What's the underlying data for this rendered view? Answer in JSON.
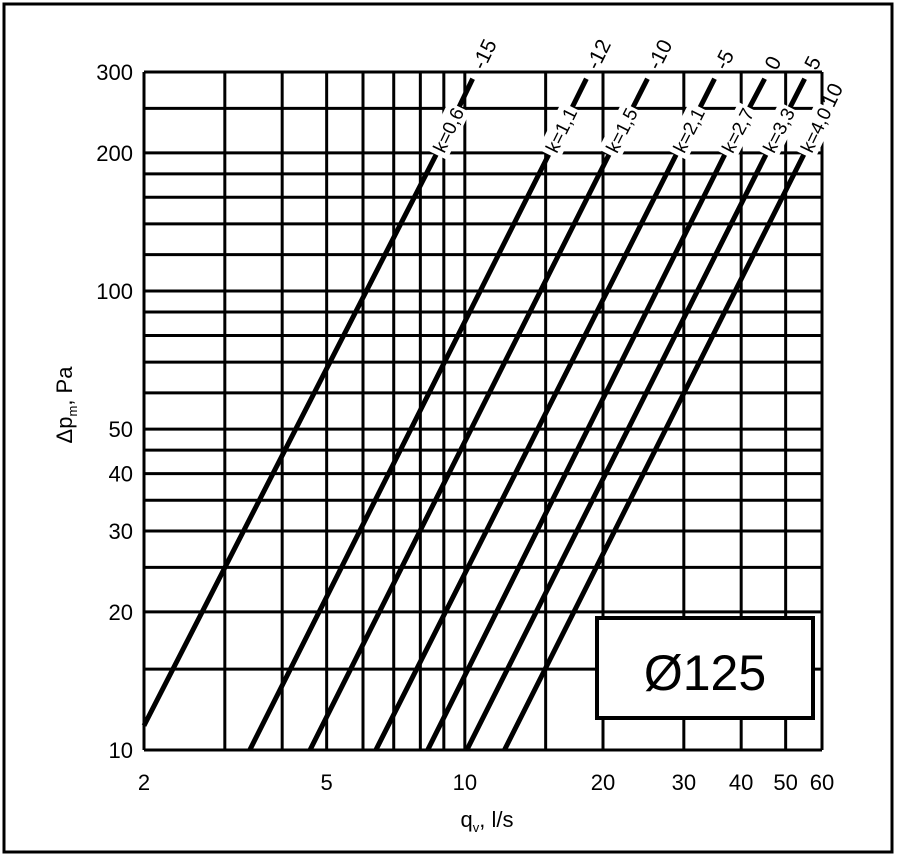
{
  "chart_data": {
    "type": "line",
    "x_scale": "log",
    "y_scale": "log",
    "xlim": [
      2,
      60
    ],
    "ylim": [
      10,
      300
    ],
    "xlabel": "q",
    "xlabel_sub": "v",
    "xlabel_unit": ", l/s",
    "ylabel": "Δp",
    "ylabel_sub": "m",
    "ylabel_unit": ", Pa",
    "x_tick_labels": [
      {
        "value": 2,
        "label": "2"
      },
      {
        "value": 5,
        "label": "5"
      },
      {
        "value": 10,
        "label": "10"
      },
      {
        "value": 20,
        "label": "20"
      },
      {
        "value": 30,
        "label": "30"
      },
      {
        "value": 40,
        "label": "40"
      },
      {
        "value": 50,
        "label": "50"
      },
      {
        "value": 60,
        "label": "60"
      }
    ],
    "y_tick_labels": [
      {
        "value": 10,
        "label": "10"
      },
      {
        "value": 20,
        "label": "20"
      },
      {
        "value": 30,
        "label": "30"
      },
      {
        "value": 40,
        "label": "40"
      },
      {
        "value": 50,
        "label": "50"
      },
      {
        "value": 100,
        "label": "100"
      },
      {
        "value": 200,
        "label": "200"
      },
      {
        "value": 300,
        "label": "300"
      }
    ],
    "x_gridlines": [
      2,
      3,
      4,
      5,
      6,
      7,
      8,
      9,
      10,
      15,
      20,
      30,
      40,
      50,
      60
    ],
    "y_gridlines": [
      10,
      15,
      20,
      25,
      30,
      35,
      40,
      45,
      50,
      60,
      70,
      80,
      90,
      100,
      120,
      140,
      160,
      180,
      200,
      250,
      300
    ],
    "grid": true,
    "series": [
      {
        "k_label": "k=0,6",
        "end_label": "-15",
        "points": [
          [
            2,
            11.3
          ],
          [
            8.7,
            200
          ],
          [
            10.4,
            290
          ]
        ]
      },
      {
        "k_label": "k=1,1",
        "end_label": "-12",
        "points": [
          [
            3.4,
            10
          ],
          [
            15.3,
            200
          ],
          [
            18.4,
            290
          ]
        ]
      },
      {
        "k_label": "k=1,5",
        "end_label": "-10",
        "points": [
          [
            4.6,
            10
          ],
          [
            20.7,
            200
          ],
          [
            25,
            290
          ]
        ]
      },
      {
        "k_label": "k=2,1",
        "end_label": "-5",
        "points": [
          [
            6.4,
            10
          ],
          [
            29,
            200
          ],
          [
            35,
            290
          ]
        ]
      },
      {
        "k_label": "k=2,7",
        "end_label": "0",
        "points": [
          [
            8.3,
            10
          ],
          [
            37,
            200
          ],
          [
            45,
            290
          ]
        ]
      },
      {
        "k_label": "k=3,3",
        "end_label": "5",
        "points": [
          [
            10.1,
            10
          ],
          [
            45.5,
            200
          ],
          [
            55,
            290
          ]
        ]
      },
      {
        "k_label": "k=4,0",
        "end_label": "10",
        "points": [
          [
            12.2,
            10
          ],
          [
            55,
            200
          ],
          [
            60,
            240
          ]
        ]
      }
    ],
    "annotation": "Ø125"
  },
  "colors": {
    "line": "#000000",
    "background": "#ffffff"
  }
}
